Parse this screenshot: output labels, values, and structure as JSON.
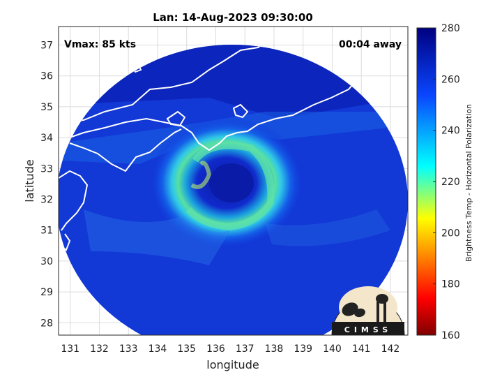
{
  "chart_data": {
    "type": "heatmap",
    "title": "Lan: 14-Aug-2023 09:30:00",
    "xlabel": "longitude",
    "ylabel": "latitude",
    "xlim": [
      130.6,
      142.6
    ],
    "ylim": [
      27.6,
      37.6
    ],
    "xticks": [
      131,
      132,
      133,
      134,
      135,
      136,
      137,
      138,
      139,
      140,
      141,
      142
    ],
    "yticks": [
      28,
      29,
      30,
      31,
      32,
      33,
      34,
      35,
      36,
      37
    ],
    "grid": true,
    "annotations": {
      "vmax": "Vmax: 85 kts",
      "time_away": "00:04 away"
    },
    "storm_center": [
      136.4,
      32.3
    ],
    "colorbar": {
      "label": "Brightness Temp - Horizontal Polarization",
      "range": [
        160,
        280
      ],
      "ticks": [
        160,
        180,
        200,
        220,
        240,
        260,
        280
      ],
      "colors": [
        "#800000",
        "#ff0000",
        "#ffff00",
        "#00ffff",
        "#0000ff",
        "#000080"
      ]
    },
    "logo_text": "CIMSS"
  }
}
